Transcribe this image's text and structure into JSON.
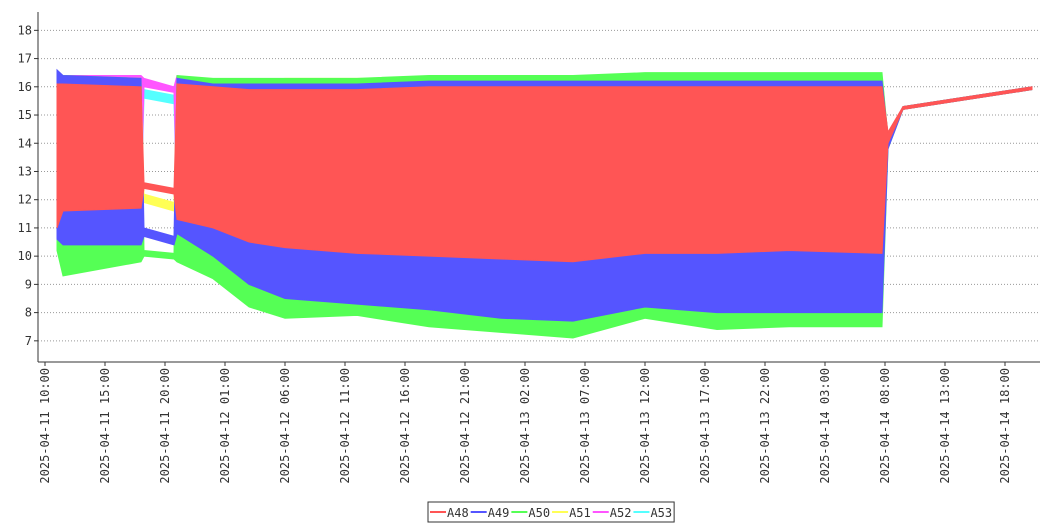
{
  "chart_data": {
    "type": "range-area",
    "grid": true,
    "legend": "bottom",
    "xlim": [
      "2025-04-11 09:25",
      "2025-04-14 20:55"
    ],
    "ylim": [
      6.25,
      18.65
    ],
    "yticks": [
      7,
      8,
      9,
      10,
      11,
      12,
      13,
      14,
      15,
      16,
      17,
      18
    ],
    "xticks": [
      "2025-04-11 10:00",
      "2025-04-11 15:00",
      "2025-04-11 20:00",
      "2025-04-12 01:00",
      "2025-04-12 06:00",
      "2025-04-12 11:00",
      "2025-04-12 16:00",
      "2025-04-12 21:00",
      "2025-04-13 02:00",
      "2025-04-13 07:00",
      "2025-04-13 12:00",
      "2025-04-13 17:00",
      "2025-04-13 22:00",
      "2025-04-14 03:00",
      "2025-04-14 08:00",
      "2025-04-14 13:00",
      "2025-04-14 18:00"
    ],
    "x": [
      "2025-04-11 11:00",
      "2025-04-11 11:30",
      "2025-04-11 18:00",
      "2025-04-11 18:15",
      "2025-04-11 20:45",
      "2025-04-11 21:00",
      "2025-04-12 00:00",
      "2025-04-12 03:00",
      "2025-04-12 06:00",
      "2025-04-12 12:00",
      "2025-04-12 18:00",
      "2025-04-13 00:00",
      "2025-04-13 06:00",
      "2025-04-13 12:00",
      "2025-04-13 18:00",
      "2025-04-14 00:00",
      "2025-04-14 07:45",
      "2025-04-14 08:15",
      "2025-04-14 09:30",
      "2025-04-14 20:15"
    ],
    "series": [
      {
        "name": "A48",
        "color": "#ff5555",
        "values": [
          [
            11.0,
            16.1
          ],
          [
            11.6,
            16.1
          ],
          [
            11.7,
            16.0
          ],
          [
            12.4,
            12.6
          ],
          [
            12.2,
            12.4
          ],
          [
            11.3,
            16.1
          ],
          [
            11.0,
            16.0
          ],
          [
            10.5,
            15.9
          ],
          [
            10.3,
            15.9
          ],
          [
            10.1,
            15.9
          ],
          [
            10.0,
            16.0
          ],
          [
            9.9,
            16.0
          ],
          [
            9.8,
            16.0
          ],
          [
            10.1,
            16.0
          ],
          [
            10.1,
            16.0
          ],
          [
            10.2,
            16.0
          ],
          [
            10.1,
            16.0
          ],
          [
            14.0,
            14.4
          ],
          [
            15.2,
            15.3
          ],
          [
            15.9,
            16.0
          ]
        ]
      },
      {
        "name": "A49",
        "color": "#5555ff",
        "values": [
          [
            10.6,
            16.6
          ],
          [
            10.4,
            16.4
          ],
          [
            10.4,
            16.3
          ],
          [
            10.7,
            11.0
          ],
          [
            10.4,
            10.7
          ],
          [
            10.8,
            16.3
          ],
          [
            10.0,
            16.1
          ],
          [
            9.0,
            16.1
          ],
          [
            8.5,
            16.1
          ],
          [
            8.3,
            16.1
          ],
          [
            8.1,
            16.2
          ],
          [
            7.8,
            16.2
          ],
          [
            7.7,
            16.2
          ],
          [
            8.2,
            16.2
          ],
          [
            8.0,
            16.2
          ],
          [
            8.0,
            16.2
          ],
          [
            8.0,
            16.2
          ],
          [
            13.8,
            14.3
          ],
          [
            15.2,
            15.3
          ],
          [
            15.9,
            16.0
          ]
        ]
      },
      {
        "name": "A50",
        "color": "#55ff55",
        "values": [
          [
            10.2,
            16.5
          ],
          [
            9.3,
            16.4
          ],
          [
            9.8,
            16.3
          ],
          [
            10.0,
            10.2
          ],
          [
            9.9,
            10.1
          ],
          [
            9.8,
            16.4
          ],
          [
            9.2,
            16.3
          ],
          [
            8.2,
            16.3
          ],
          [
            7.8,
            16.3
          ],
          [
            7.9,
            16.3
          ],
          [
            7.5,
            16.4
          ],
          [
            7.3,
            16.4
          ],
          [
            7.1,
            16.4
          ],
          [
            7.8,
            16.5
          ],
          [
            7.4,
            16.5
          ],
          [
            7.5,
            16.5
          ],
          [
            7.5,
            16.5
          ],
          [
            13.8,
            14.2
          ],
          [
            15.2,
            15.3
          ],
          [
            15.9,
            16.0
          ]
        ]
      },
      {
        "name": "A51",
        "color": "#ffff55",
        "values": [
          [
            12.0,
            16.3
          ],
          [
            11.8,
            16.3
          ],
          [
            11.8,
            16.2
          ],
          [
            11.9,
            12.2
          ],
          [
            11.6,
            11.9
          ],
          [
            11.5,
            16.2
          ],
          [
            11.0,
            16.2
          ],
          [
            10.6,
            16.2
          ],
          [
            10.4,
            16.3
          ],
          [
            10.3,
            16.3
          ],
          [
            10.2,
            16.3
          ],
          [
            10.1,
            16.3
          ],
          [
            10.0,
            16.3
          ],
          [
            10.3,
            16.4
          ],
          [
            10.3,
            16.4
          ],
          [
            10.3,
            16.4
          ],
          [
            10.3,
            16.4
          ],
          [
            14.0,
            14.3
          ],
          [
            15.2,
            15.3
          ],
          [
            15.9,
            16.0
          ]
        ]
      },
      {
        "name": "A52",
        "color": "#ff55ff",
        "values": [
          [
            12.0,
            16.3
          ],
          [
            11.8,
            16.4
          ],
          [
            11.8,
            16.4
          ],
          [
            16.0,
            16.3
          ],
          [
            15.8,
            16.0
          ],
          [
            11.5,
            16.4
          ],
          [
            11.0,
            16.2
          ],
          [
            10.6,
            16.1
          ],
          [
            10.4,
            16.1
          ],
          [
            10.3,
            16.1
          ],
          [
            10.2,
            16.1
          ],
          [
            10.1,
            16.1
          ],
          [
            10.0,
            16.1
          ],
          [
            10.3,
            16.1
          ],
          [
            10.3,
            16.1
          ],
          [
            10.3,
            16.1
          ],
          [
            10.3,
            16.1
          ],
          [
            14.0,
            14.3
          ],
          [
            15.2,
            15.3
          ],
          [
            15.9,
            16.0
          ]
        ]
      },
      {
        "name": "A53",
        "color": "#55ffff",
        "values": [
          [
            12.0,
            16.2
          ],
          [
            11.8,
            16.2
          ],
          [
            11.8,
            16.1
          ],
          [
            15.6,
            15.9
          ],
          [
            15.4,
            15.7
          ],
          [
            11.5,
            16.0
          ],
          [
            11.0,
            16.0
          ],
          [
            10.6,
            16.0
          ],
          [
            10.4,
            16.0
          ],
          [
            10.3,
            16.0
          ],
          [
            10.2,
            16.0
          ],
          [
            10.1,
            16.0
          ],
          [
            10.0,
            16.0
          ],
          [
            10.3,
            16.0
          ],
          [
            10.3,
            16.0
          ],
          [
            10.3,
            16.0
          ],
          [
            10.3,
            16.0
          ],
          [
            14.0,
            14.3
          ],
          [
            15.2,
            15.3
          ],
          [
            15.9,
            16.0
          ]
        ]
      }
    ]
  }
}
